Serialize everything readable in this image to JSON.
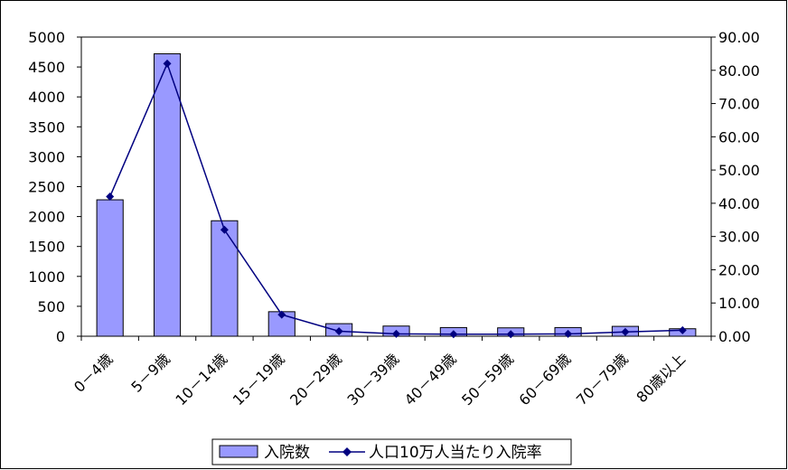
{
  "chart_data": {
    "type": "bar+line",
    "categories": [
      "0－4歳",
      "5－9歳",
      "10－14歳",
      "15－19歳",
      "20－29歳",
      "30－39歳",
      "40－49歳",
      "50－59歳",
      "60－69歳",
      "70－79歳",
      "80歳以上"
    ],
    "series": [
      {
        "name": "入院数",
        "type": "bar",
        "axis": "left",
        "values": [
          2280,
          4720,
          1930,
          410,
          210,
          170,
          145,
          140,
          145,
          165,
          125
        ]
      },
      {
        "name": "人口10万人当たり入院率",
        "type": "line",
        "axis": "right",
        "values": [
          42.0,
          82.0,
          32.0,
          6.5,
          1.5,
          0.7,
          0.6,
          0.6,
          0.7,
          1.3,
          1.8
        ]
      }
    ],
    "y_left": {
      "ylim": [
        0,
        5000
      ],
      "ticks": [
        "0",
        "500",
        "1000",
        "1500",
        "2000",
        "2500",
        "3000",
        "3500",
        "4000",
        "4500",
        "5000"
      ]
    },
    "y_right": {
      "ylim": [
        0,
        90
      ],
      "ticks": [
        "0.00",
        "10.00",
        "20.00",
        "30.00",
        "40.00",
        "50.00",
        "60.00",
        "70.00",
        "80.00",
        "90.00"
      ]
    },
    "grid": false,
    "legend": "bottom-center",
    "colors": {
      "bar_fill": "#9999ff",
      "bar_stroke": "#000000",
      "line": "#000080"
    }
  }
}
